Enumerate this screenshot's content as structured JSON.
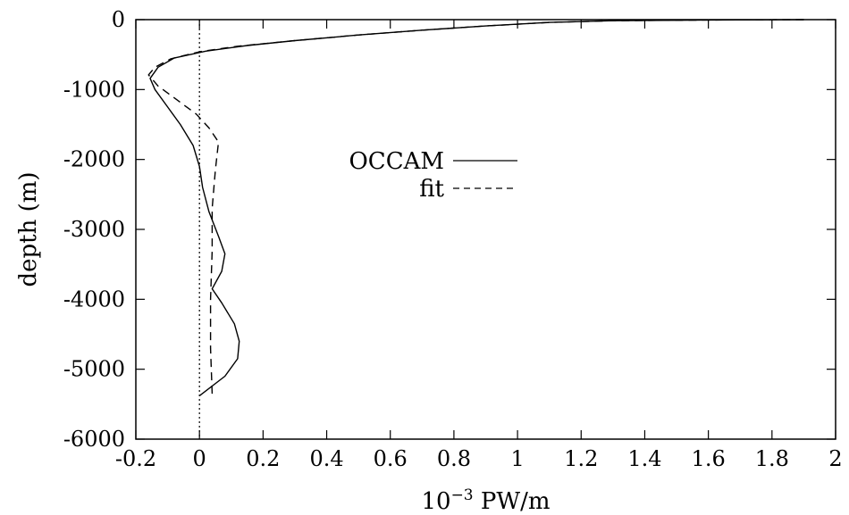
{
  "chart_data": {
    "type": "line",
    "xlabel_base": "10",
    "xlabel_exp": "−3",
    "xlabel_unit": " PW/m",
    "ylabel": "depth (m)",
    "xlim": [
      -0.2,
      2
    ],
    "ylim": [
      -6000,
      0
    ],
    "x_ticks": [
      -0.2,
      0,
      0.2,
      0.4,
      0.6,
      0.8,
      1,
      1.2,
      1.4,
      1.6,
      1.8,
      2
    ],
    "x_tick_labels": [
      "-0.2",
      "0",
      "0.2",
      "0.4",
      "0.6",
      "0.8",
      "1",
      "1.2",
      "1.4",
      "1.6",
      "1.8",
      "2"
    ],
    "y_ticks": [
      0,
      -1000,
      -2000,
      -3000,
      -4000,
      -5000,
      -6000
    ],
    "y_tick_labels": [
      "0",
      "-1000",
      "-2000",
      "-3000",
      "-4000",
      "-5000",
      "-6000"
    ],
    "reference_line_x": 0,
    "legend_position": "center",
    "series": [
      {
        "name": "OCCAM",
        "style": "solid",
        "points": [
          [
            1.9,
            0
          ],
          [
            1.6,
            -5
          ],
          [
            1.3,
            -15
          ],
          [
            1.1,
            -40
          ],
          [
            0.9,
            -90
          ],
          [
            0.7,
            -150
          ],
          [
            0.5,
            -220
          ],
          [
            0.3,
            -300
          ],
          [
            0.15,
            -370
          ],
          [
            0.02,
            -450
          ],
          [
            -0.08,
            -550
          ],
          [
            -0.13,
            -680
          ],
          [
            -0.155,
            -840
          ],
          [
            -0.14,
            -1000
          ],
          [
            -0.1,
            -1250
          ],
          [
            -0.06,
            -1500
          ],
          [
            -0.02,
            -1800
          ],
          [
            0.0,
            -2100
          ],
          [
            0.01,
            -2400
          ],
          [
            0.03,
            -2750
          ],
          [
            0.06,
            -3100
          ],
          [
            0.08,
            -3350
          ],
          [
            0.07,
            -3600
          ],
          [
            0.04,
            -3850
          ],
          [
            0.07,
            -4050
          ],
          [
            0.11,
            -4350
          ],
          [
            0.125,
            -4600
          ],
          [
            0.12,
            -4850
          ],
          [
            0.08,
            -5100
          ],
          [
            0.0,
            -5380
          ]
        ]
      },
      {
        "name": "fit",
        "style": "dashed",
        "points": [
          [
            1.9,
            0
          ],
          [
            1.6,
            -5
          ],
          [
            1.3,
            -15
          ],
          [
            1.1,
            -40
          ],
          [
            0.9,
            -90
          ],
          [
            0.7,
            -150
          ],
          [
            0.5,
            -220
          ],
          [
            0.3,
            -300
          ],
          [
            0.12,
            -380
          ],
          [
            0.0,
            -460
          ],
          [
            -0.09,
            -560
          ],
          [
            -0.14,
            -680
          ],
          [
            -0.16,
            -790
          ],
          [
            -0.13,
            -950
          ],
          [
            -0.07,
            -1150
          ],
          [
            -0.01,
            -1350
          ],
          [
            0.03,
            -1550
          ],
          [
            0.06,
            -1750
          ],
          [
            0.05,
            -2150
          ],
          [
            0.04,
            -2700
          ],
          [
            0.04,
            -3300
          ],
          [
            0.035,
            -4000
          ],
          [
            0.035,
            -4700
          ],
          [
            0.04,
            -5350
          ]
        ]
      }
    ]
  }
}
